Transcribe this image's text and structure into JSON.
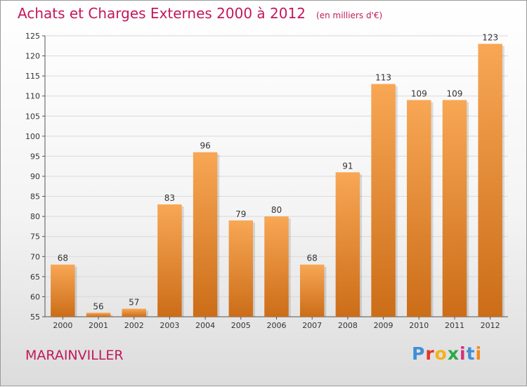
{
  "header": {
    "title": "Achats et Charges Externes 2000 à 2012",
    "unit": "(en milliers d'€)"
  },
  "footer": {
    "commune": "MARAINVILLER",
    "brand": "Proxiti"
  },
  "colors": {
    "bar_top": "#f8a755",
    "bar_bottom": "#cc6d18",
    "title": "#c2185b",
    "grid": "#d9d9d9"
  },
  "chart_data": {
    "type": "bar",
    "title": "Achats et Charges Externes 2000 à 2012",
    "subtitle": "(en milliers d'€)",
    "categories": [
      "2000",
      "2001",
      "2002",
      "2003",
      "2004",
      "2005",
      "2006",
      "2007",
      "2008",
      "2009",
      "2010",
      "2011",
      "2012"
    ],
    "values": [
      68,
      56,
      57,
      83,
      96,
      79,
      80,
      68,
      91,
      113,
      109,
      109,
      123
    ],
    "ylim": [
      55,
      125
    ],
    "yticks": [
      55,
      60,
      65,
      70,
      75,
      80,
      85,
      90,
      95,
      100,
      105,
      110,
      115,
      120,
      125
    ],
    "grid": true,
    "xlabel": "",
    "ylabel": ""
  }
}
